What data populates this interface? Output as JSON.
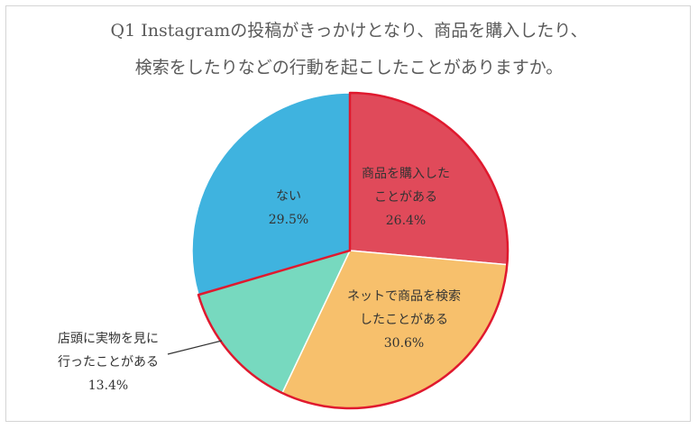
{
  "title": {
    "line1": "Q1 Instagramの投稿がきっかけとなり、商品を購入したり、",
    "line2": "検索をしたりなどの行動を起こしたことがありますか。"
  },
  "chart_data": {
    "type": "pie",
    "title": "Q1 Instagramの投稿がきっかけとなり、商品を購入したり、検索をしたりなどの行動を起こしたことがありますか。",
    "start_angle": "12 o'clock, clockwise",
    "slices": [
      {
        "label_lines": [
          "商品を購入した",
          "ことがある"
        ],
        "value_label": "26.4%",
        "value": 26.4,
        "color": "#e04a5a",
        "highlight": true
      },
      {
        "label_lines": [
          "ネットで商品を検索",
          "したことがある"
        ],
        "value_label": "30.6%",
        "value": 30.6,
        "color": "#f7c06c",
        "highlight": true
      },
      {
        "label_lines": [
          "店頭に実物を見に",
          "行ったことがある"
        ],
        "value_label": "13.4%",
        "value": 13.4,
        "color": "#77d9bf",
        "highlight": true
      },
      {
        "label_lines": [
          "ない"
        ],
        "value_label": "29.5%",
        "value": 29.5,
        "color": "#3fb3df",
        "highlight": false
      }
    ],
    "highlight_outline_color": "#e0192e",
    "slice_border_color": "#ffffff"
  }
}
